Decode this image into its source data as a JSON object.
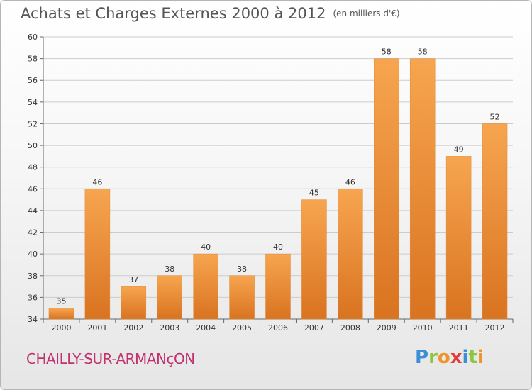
{
  "title": "Achats et Charges Externes 2000 à 2012",
  "unit": "(en milliers d'€)",
  "commune": "CHAILLY-SUR-ARMANçON",
  "logo": {
    "text": "Proxiti",
    "letters": [
      "P",
      "r",
      "o",
      "x",
      "i",
      "t",
      "i"
    ]
  },
  "colors": {
    "bar_top": "#f7a550",
    "bar_bottom": "#d97320",
    "grid": "#cccccc",
    "title": "#555555",
    "commune": "#c0336e"
  },
  "chart_data": {
    "type": "bar",
    "title": "Achats et Charges Externes 2000 à 2012",
    "subtitle": "(en milliers d'€)",
    "categories": [
      "2000",
      "2001",
      "2002",
      "2003",
      "2004",
      "2005",
      "2006",
      "2007",
      "2008",
      "2009",
      "2010",
      "2011",
      "2012"
    ],
    "values": [
      35,
      46,
      37,
      38,
      40,
      38,
      40,
      45,
      46,
      58,
      58,
      49,
      52
    ],
    "data_labels": [
      "35",
      "46",
      "37",
      "38",
      "40",
      "38",
      "40",
      "45",
      "46",
      "58",
      "58",
      "49",
      "52"
    ],
    "ylim": [
      34,
      60
    ],
    "yticks": [
      "34",
      "36",
      "38",
      "40",
      "42",
      "44",
      "46",
      "48",
      "50",
      "52",
      "54",
      "56",
      "58",
      "60"
    ],
    "grid": true,
    "xlabel": "",
    "ylabel": ""
  }
}
